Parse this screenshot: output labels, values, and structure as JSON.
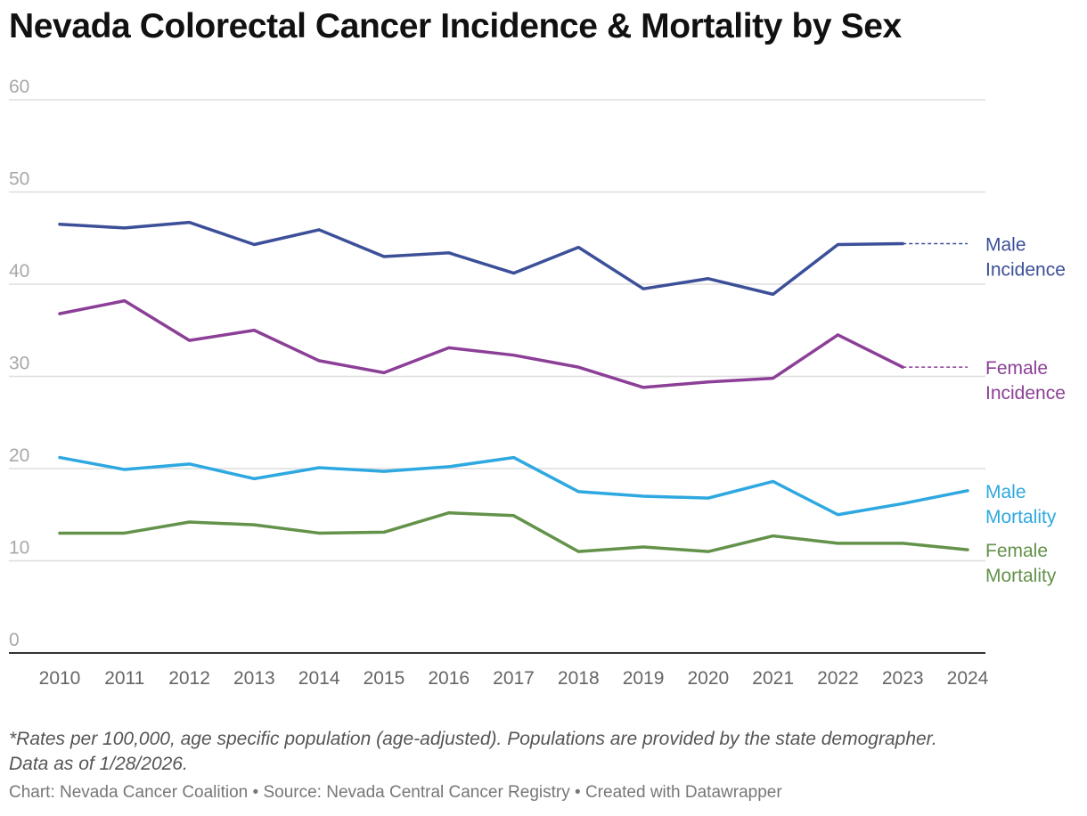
{
  "title": "Nevada Colorectal Cancer Incidence & Mortality by Sex",
  "notes": [
    "*Rates per 100,000, age specific population (age-adjusted). Populations are provided by the state demographer.",
    "Data as of 1/28/2026."
  ],
  "footer": {
    "chart_credit": "Chart: Nevada Cancer Coalition",
    "separator": " • ",
    "source": "Source: Nevada Central Cancer Registry",
    "created": "Created with Datawrapper"
  },
  "chart_data": {
    "type": "line",
    "title": "Nevada Colorectal Cancer Incidence & Mortality by Sex",
    "xlabel": "",
    "ylabel": "",
    "ylim": [
      0,
      60
    ],
    "yticks": [
      0,
      10,
      20,
      30,
      40,
      50,
      60
    ],
    "grid": true,
    "x": [
      2010,
      2011,
      2012,
      2013,
      2014,
      2015,
      2016,
      2017,
      2018,
      2019,
      2020,
      2021,
      2022,
      2023,
      2024
    ],
    "series": [
      {
        "name": "Male Incidence",
        "label_lines": [
          "Male",
          "Incidence"
        ],
        "color": "#3c4f99",
        "values": [
          46.5,
          46.1,
          46.7,
          44.3,
          45.9,
          43.0,
          43.4,
          41.2,
          44.0,
          39.5,
          40.6,
          38.9,
          44.3,
          44.4,
          null
        ],
        "projected_to": 2024
      },
      {
        "name": "Female Incidence",
        "label_lines": [
          "Female",
          "Incidence"
        ],
        "color": "#8c3f96",
        "values": [
          36.8,
          38.2,
          33.9,
          35.0,
          31.7,
          30.4,
          33.1,
          32.3,
          31.0,
          28.8,
          29.4,
          29.8,
          34.5,
          31.0,
          null
        ],
        "projected_to": 2024
      },
      {
        "name": "Male Mortality",
        "label_lines": [
          "Male",
          "Mortality"
        ],
        "color": "#2ea8e0",
        "values": [
          21.2,
          19.9,
          20.5,
          18.9,
          20.1,
          19.7,
          20.2,
          21.2,
          17.5,
          17.0,
          16.8,
          18.6,
          15.0,
          16.2,
          17.6
        ]
      },
      {
        "name": "Female Mortality",
        "label_lines": [
          "Female",
          "Mortality"
        ],
        "color": "#63924a",
        "values": [
          13.0,
          13.0,
          14.2,
          13.9,
          13.0,
          13.1,
          15.2,
          14.9,
          11.0,
          11.5,
          11.0,
          12.7,
          11.9,
          11.9,
          11.2
        ]
      }
    ]
  }
}
